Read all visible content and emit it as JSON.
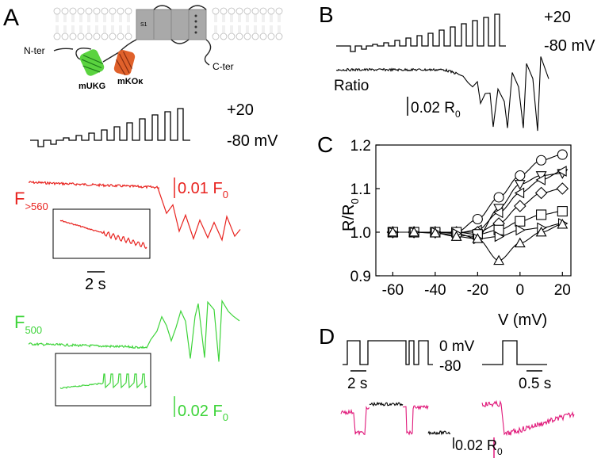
{
  "panels": {
    "a": "A",
    "b": "B",
    "c": "C",
    "d": "D"
  },
  "schematic": {
    "segment": "S1",
    "n_term": "N-ter",
    "c_term": "C-ter",
    "fp1": "mUKG",
    "fp2": "mKOκ"
  },
  "voltage": {
    "top": "+20",
    "bottom": "-80 mV",
    "d_top": "0 mV",
    "d_bottom": "-80"
  },
  "traces": {
    "ratio_label": "Ratio",
    "ratio_scale": "0.02 R",
    "ratio_scale_sub": "0",
    "red_label": "F",
    "red_sub": ">560",
    "red_scale": "0.01 F",
    "red_scale_sub": "0",
    "green_label": "F",
    "green_sub": "500",
    "green_scale": "0.02 F",
    "green_scale_sub": "0",
    "time_scale": "2 s",
    "d_time_1": "2 s",
    "d_time_2": "0.5 s",
    "d_scale": "0.02 R",
    "d_scale_sub": "0"
  },
  "colors": {
    "red": "#e8231f",
    "green": "#3ed43a",
    "magenta": "#e0197a",
    "black": "#000000"
  },
  "chart_data": {
    "type": "scatter",
    "title": "",
    "xlabel": "V (mV)",
    "ylabel": "R/R0",
    "ylabel_main": "R/R",
    "ylabel_sub": "0",
    "xlim": [
      -68,
      24
    ],
    "ylim": [
      0.9,
      1.2
    ],
    "xticks": [
      -60,
      -40,
      -20,
      0,
      20
    ],
    "yticks": [
      0.9,
      1.0,
      1.1,
      1.2
    ],
    "ytick_labels": [
      "0.9",
      "1.0",
      "1.1",
      "1.2"
    ],
    "series": [
      {
        "marker": "circle",
        "x": [
          -60,
          -50,
          -40,
          -30,
          -20,
          -10,
          0,
          10,
          20
        ],
        "y": [
          1.0,
          1.0,
          1.0,
          1.0,
          1.03,
          1.08,
          1.13,
          1.165,
          1.178
        ]
      },
      {
        "marker": "triangle-down",
        "x": [
          -60,
          -50,
          -40,
          -30,
          -20,
          -10,
          0,
          10,
          20
        ],
        "y": [
          1.0,
          1.0,
          0.998,
          0.993,
          0.99,
          1.055,
          1.11,
          1.13,
          1.135
        ]
      },
      {
        "marker": "triangle-left",
        "x": [
          -60,
          -50,
          -40,
          -30,
          -20,
          -10,
          0,
          10,
          20
        ],
        "y": [
          1.0,
          1.0,
          1.0,
          0.998,
          1.005,
          1.045,
          1.09,
          1.12,
          1.14
        ]
      },
      {
        "marker": "diamond",
        "x": [
          -60,
          -50,
          -40,
          -30,
          -20,
          -10,
          0,
          10,
          20
        ],
        "y": [
          1.0,
          1.0,
          1.0,
          1.0,
          1.0,
          1.02,
          1.06,
          1.09,
          1.1
        ]
      },
      {
        "marker": "square",
        "x": [
          -60,
          -50,
          -40,
          -30,
          -20,
          -10,
          0,
          10,
          20
        ],
        "y": [
          1.0,
          1.0,
          1.0,
          1.0,
          0.995,
          1.005,
          1.025,
          1.04,
          1.048
        ]
      },
      {
        "marker": "triangle-right",
        "x": [
          -60,
          -50,
          -40,
          -30,
          -20,
          -10,
          0,
          10,
          20
        ],
        "y": [
          1.0,
          1.0,
          1.0,
          0.997,
          0.985,
          0.99,
          1.005,
          1.01,
          1.02
        ]
      },
      {
        "marker": "triangle-up",
        "x": [
          -60,
          -50,
          -40,
          -30,
          -20,
          -10,
          0,
          10,
          20
        ],
        "y": [
          1.0,
          1.0,
          0.998,
          0.99,
          0.985,
          0.935,
          0.975,
          1.0,
          1.018
        ]
      }
    ]
  }
}
